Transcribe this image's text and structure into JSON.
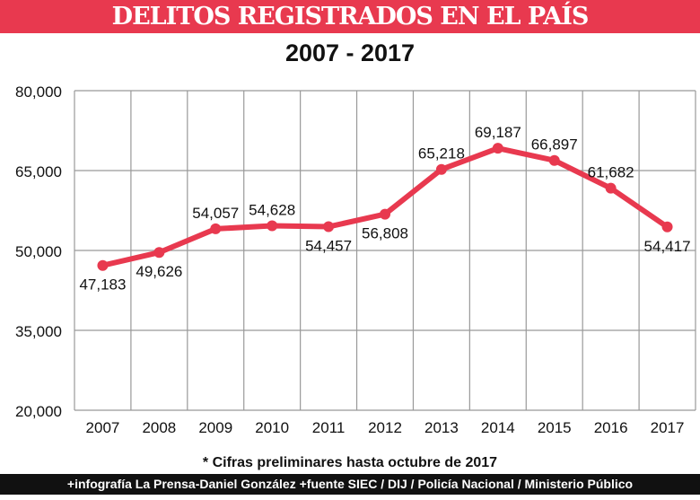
{
  "header": {
    "title": "DELITOS REGISTRADOS EN EL PAÍS",
    "subtitle": "2007 - 2017"
  },
  "note": "* Cifras preliminares hasta octubre de 2017",
  "footer": "+infografía  La Prensa-Daniel González  +fuente SIEC / DIJ / Policía Nacional / Ministerio Público",
  "colors": {
    "accent": "#e8394f",
    "footer_bg": "#111111",
    "grid": "#999999"
  },
  "chart_data": {
    "type": "line",
    "title": "DELITOS REGISTRADOS EN EL PAÍS",
    "subtitle": "2007 - 2017",
    "categories": [
      "2007",
      "2008",
      "2009",
      "2010",
      "2011",
      "2012",
      "2013",
      "2014",
      "2015",
      "2016",
      "2017"
    ],
    "values": [
      47183,
      49626,
      54057,
      54628,
      54457,
      56808,
      65218,
      69187,
      66897,
      61682,
      54417
    ],
    "data_labels": [
      "47,183",
      "49,626",
      "54,057",
      "54,628",
      "54,457",
      "56,808",
      "65,218",
      "69,187",
      "66,897",
      "61,682",
      "54,417"
    ],
    "ylim": [
      20000,
      80000
    ],
    "yticks": [
      20000,
      35000,
      50000,
      65000,
      80000
    ],
    "ytick_labels": [
      "20,000",
      "35,000",
      "50,000",
      "65,000",
      "80,000"
    ],
    "grid": true,
    "xlabel": "",
    "ylabel": ""
  }
}
